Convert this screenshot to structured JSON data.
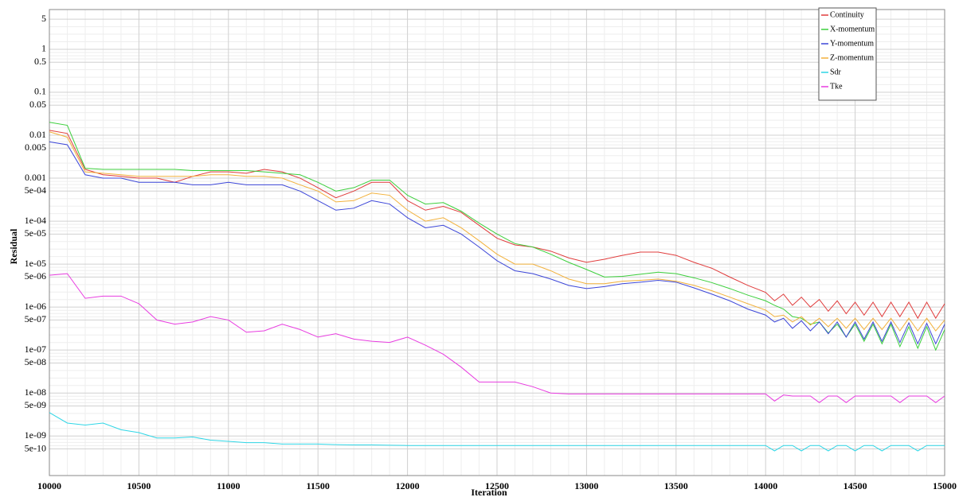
{
  "chart_data": {
    "type": "line",
    "xlabel": "Iteration",
    "ylabel": "Residual",
    "log_y": true,
    "grid": true,
    "legend": "top-right",
    "xlim": [
      10000,
      15000
    ],
    "xticks": [
      10000,
      10500,
      11000,
      11500,
      12000,
      12500,
      13000,
      13500,
      14000,
      14500,
      15000
    ],
    "ylim": [
      1.2e-10,
      8.4
    ],
    "yticks": [
      5,
      1,
      0.5,
      0.1,
      0.05,
      0.01,
      0.005,
      0.001,
      {
        "value": 0.0005,
        "label": "5e-04"
      },
      {
        "value": 0.0001,
        "label": "1e-04"
      },
      {
        "value": 5e-05,
        "label": "5e-05"
      },
      {
        "value": 1e-05,
        "label": "1e-05"
      },
      {
        "value": 5e-06,
        "label": "5e-06"
      },
      {
        "value": 1e-06,
        "label": "1e-06"
      },
      {
        "value": 5e-07,
        "label": "5e-07"
      },
      {
        "value": 1e-07,
        "label": "1e-07"
      },
      {
        "value": 5e-08,
        "label": "5e-08"
      },
      {
        "value": 1e-08,
        "label": "1e-08"
      },
      {
        "value": 5e-09,
        "label": "5e-09"
      },
      {
        "value": 1e-09,
        "label": "1e-09"
      },
      {
        "value": 5e-10,
        "label": "5e-10"
      }
    ],
    "x": [
      10000,
      10100,
      10200,
      10300,
      10400,
      10500,
      10600,
      10700,
      10800,
      10900,
      11000,
      11100,
      11200,
      11300,
      11400,
      11500,
      11600,
      11700,
      11800,
      11900,
      12000,
      12100,
      12200,
      12300,
      12400,
      12500,
      12600,
      12700,
      12800,
      12900,
      13000,
      13100,
      13200,
      13300,
      13400,
      13500,
      13600,
      13700,
      13800,
      13900,
      14000,
      14050,
      14100,
      14150,
      14200,
      14250,
      14300,
      14350,
      14400,
      14450,
      14500,
      14550,
      14600,
      14650,
      14700,
      14750,
      14800,
      14850,
      14900,
      14950,
      15000
    ],
    "series": [
      {
        "name": "Continuity",
        "color": "#e03c3c",
        "values": [
          0.013,
          0.011,
          0.0016,
          0.0012,
          0.0011,
          0.001,
          0.001,
          0.0008,
          0.0011,
          0.0014,
          0.0014,
          0.0013,
          0.0016,
          0.0014,
          0.001,
          0.0006,
          0.00035,
          0.0005,
          0.0008,
          0.0008,
          0.0003,
          0.00018,
          0.00022,
          0.00016,
          8e-05,
          4e-05,
          2.8e-05,
          2.5e-05,
          2e-05,
          1.4e-05,
          1.1e-05,
          1.3e-05,
          1.6e-05,
          1.9e-05,
          1.9e-05,
          1.6e-05,
          1.1e-05,
          8e-06,
          5e-06,
          3.2e-06,
          2.2e-06,
          1.4e-06,
          2e-06,
          1.1e-06,
          1.7e-06,
          1e-06,
          1.5e-06,
          8e-07,
          1.4e-06,
          7e-07,
          1.3e-06,
          6.5e-07,
          1.3e-06,
          6e-07,
          1.3e-06,
          6e-07,
          1.3e-06,
          5.5e-07,
          1.3e-06,
          5.5e-07,
          1.2e-06
        ]
      },
      {
        "name": "X-momentum",
        "color": "#3ccf3c",
        "values": [
          0.02,
          0.017,
          0.0017,
          0.0016,
          0.0016,
          0.0016,
          0.0016,
          0.0016,
          0.0015,
          0.0015,
          0.0015,
          0.0015,
          0.0014,
          0.0013,
          0.0012,
          0.0008,
          0.0005,
          0.0006,
          0.0009,
          0.0009,
          0.0004,
          0.00025,
          0.00027,
          0.00017,
          9e-05,
          5e-05,
          3e-05,
          2.5e-05,
          1.7e-05,
          1.1e-05,
          7.5e-06,
          5e-06,
          5.2e-06,
          5.8e-06,
          6.5e-06,
          6e-06,
          4.8e-06,
          3.7e-06,
          2.7e-06,
          1.9e-06,
          1.4e-06,
          1.1e-06,
          9e-07,
          6e-07,
          5.5e-07,
          4e-07,
          4.5e-07,
          2.5e-07,
          4e-07,
          2e-07,
          4e-07,
          1.6e-07,
          4e-07,
          1.4e-07,
          4e-07,
          1.2e-07,
          3.5e-07,
          1.1e-07,
          3.5e-07,
          1e-07,
          3e-07
        ]
      },
      {
        "name": "Y-momentum",
        "color": "#3c46d8",
        "values": [
          0.007,
          0.006,
          0.0012,
          0.001,
          0.001,
          0.0008,
          0.0008,
          0.0008,
          0.0007,
          0.0007,
          0.0008,
          0.0007,
          0.0007,
          0.0007,
          0.0005,
          0.0003,
          0.00018,
          0.0002,
          0.0003,
          0.00025,
          0.00012,
          7e-05,
          8e-05,
          5e-05,
          2.5e-05,
          1.2e-05,
          7e-06,
          6e-06,
          4.5e-06,
          3.2e-06,
          2.7e-06,
          3e-06,
          3.5e-06,
          3.8e-06,
          4.2e-06,
          3.8e-06,
          2.8e-06,
          2e-06,
          1.4e-06,
          9e-07,
          6.5e-07,
          4.5e-07,
          5.5e-07,
          3.2e-07,
          4.8e-07,
          2.8e-07,
          4.5e-07,
          2.4e-07,
          4.5e-07,
          2e-07,
          4.5e-07,
          1.8e-07,
          4.5e-07,
          1.6e-07,
          4.5e-07,
          1.5e-07,
          4.3e-07,
          1.4e-07,
          4.2e-07,
          1.4e-07,
          4e-07
        ]
      },
      {
        "name": "Z-momentum",
        "color": "#f2b13c",
        "values": [
          0.012,
          0.009,
          0.0014,
          0.0013,
          0.0012,
          0.0011,
          0.0011,
          0.0011,
          0.0011,
          0.0012,
          0.0012,
          0.0011,
          0.0011,
          0.001,
          0.0007,
          0.0005,
          0.00028,
          0.0003,
          0.00045,
          0.0004,
          0.00018,
          0.0001,
          0.00012,
          7e-05,
          3.5e-05,
          1.7e-05,
          1e-05,
          1e-05,
          7e-06,
          4.5e-06,
          3.5e-06,
          3.5e-06,
          4e-06,
          4.2e-06,
          4.5e-06,
          4e-06,
          3.2e-06,
          2.4e-06,
          1.7e-06,
          1.2e-06,
          8.5e-07,
          6e-07,
          6.5e-07,
          4.5e-07,
          6e-07,
          3.8e-07,
          5.5e-07,
          3.5e-07,
          5.5e-07,
          3.2e-07,
          5.5e-07,
          3e-07,
          5.5e-07,
          3e-07,
          5.5e-07,
          2.8e-07,
          5.5e-07,
          2.8e-07,
          5.5e-07,
          2.8e-07,
          5e-07
        ]
      },
      {
        "name": "Sdr",
        "color": "#2ed6e6",
        "values": [
          3.5e-09,
          2e-09,
          1.8e-09,
          2e-09,
          1.4e-09,
          1.2e-09,
          9e-10,
          9e-10,
          9.5e-10,
          8e-10,
          7.5e-10,
          7e-10,
          7e-10,
          6.5e-10,
          6.5e-10,
          6.5e-10,
          6.3e-10,
          6.2e-10,
          6.2e-10,
          6.1e-10,
          6e-10,
          6e-10,
          6e-10,
          6e-10,
          6e-10,
          6e-10,
          6e-10,
          6e-10,
          6e-10,
          6e-10,
          6e-10,
          6e-10,
          6e-10,
          6e-10,
          6e-10,
          6e-10,
          6e-10,
          6e-10,
          6e-10,
          6e-10,
          6e-10,
          4.5e-10,
          6e-10,
          6e-10,
          4.5e-10,
          6e-10,
          6e-10,
          4.5e-10,
          6e-10,
          6e-10,
          4.5e-10,
          6e-10,
          6e-10,
          4.5e-10,
          6e-10,
          6e-10,
          6e-10,
          4.5e-10,
          6e-10,
          6e-10,
          6e-10
        ]
      },
      {
        "name": "Tke",
        "color": "#e83ce0",
        "values": [
          5.5e-06,
          6e-06,
          1.6e-06,
          1.8e-06,
          1.8e-06,
          1.2e-06,
          5e-07,
          4e-07,
          4.5e-07,
          6e-07,
          5e-07,
          2.6e-07,
          2.8e-07,
          4e-07,
          3e-07,
          2e-07,
          2.4e-07,
          1.8e-07,
          1.6e-07,
          1.5e-07,
          2e-07,
          1.3e-07,
          8e-08,
          4e-08,
          1.8e-08,
          1.8e-08,
          1.8e-08,
          1.4e-08,
          1e-08,
          9.5e-09,
          9.5e-09,
          9.5e-09,
          9.5e-09,
          9.5e-09,
          9.5e-09,
          9.5e-09,
          9.5e-09,
          9.5e-09,
          9.5e-09,
          9.5e-09,
          9.5e-09,
          6.5e-09,
          9e-09,
          8.5e-09,
          8.5e-09,
          8.5e-09,
          6e-09,
          8.5e-09,
          8.5e-09,
          6e-09,
          8.5e-09,
          8.5e-09,
          8.5e-09,
          8.5e-09,
          8.5e-09,
          6e-09,
          8.5e-09,
          8.5e-09,
          8.5e-09,
          6e-09,
          8.5e-09
        ]
      }
    ]
  }
}
